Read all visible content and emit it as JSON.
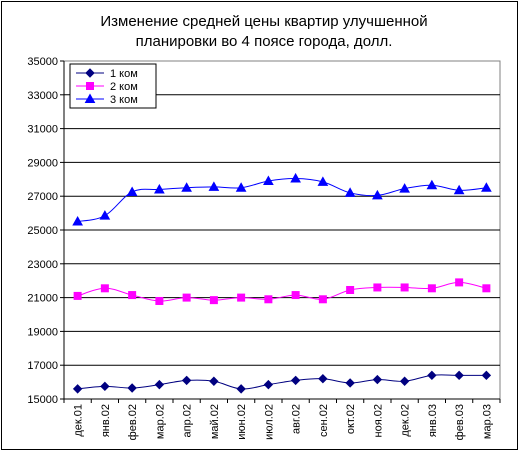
{
  "chart_data": {
    "type": "line",
    "title_lines": [
      "Изменение средней цены квартир улучшенной",
      "планировки во 4 поясе города, долл."
    ],
    "xlabel": "",
    "ylabel": "",
    "ylim": [
      15000,
      35000
    ],
    "yticks": [
      "35000",
      "33000",
      "31000",
      "29000",
      "27000",
      "25000",
      "23000",
      "21000",
      "19000",
      "17000",
      "15000"
    ],
    "grid": "horizontal",
    "legend_position": "top-left",
    "categories": [
      "дек.01",
      "янв.02",
      "фев.02",
      "мар.02",
      "апр.02",
      "май.02",
      "июн.02",
      "июл.02",
      "авг.02",
      "сен.02",
      "окт.02",
      "ноя.02",
      "дек.02",
      "янв.03",
      "фев.03",
      "мар.03"
    ],
    "series": [
      {
        "name": "1 ком",
        "color": "#000080",
        "marker": "diamond",
        "values": [
          15600,
          15750,
          15650,
          15850,
          16100,
          16050,
          15600,
          15850,
          16100,
          16200,
          15950,
          16150,
          16050,
          16400,
          16400,
          16400
        ]
      },
      {
        "name": "2 ком",
        "color": "#ff00ff",
        "marker": "square",
        "values": [
          21100,
          21550,
          21150,
          20800,
          21000,
          20850,
          21000,
          20900,
          21150,
          20900,
          21450,
          21600,
          21600,
          21550,
          21900,
          21550
        ]
      },
      {
        "name": "3 ком",
        "color": "#0000ff",
        "marker": "triangle",
        "values": [
          25500,
          25850,
          27250,
          27400,
          27500,
          27550,
          27500,
          27900,
          28050,
          27850,
          27200,
          27050,
          27450,
          27650,
          27350,
          27500
        ]
      }
    ]
  }
}
